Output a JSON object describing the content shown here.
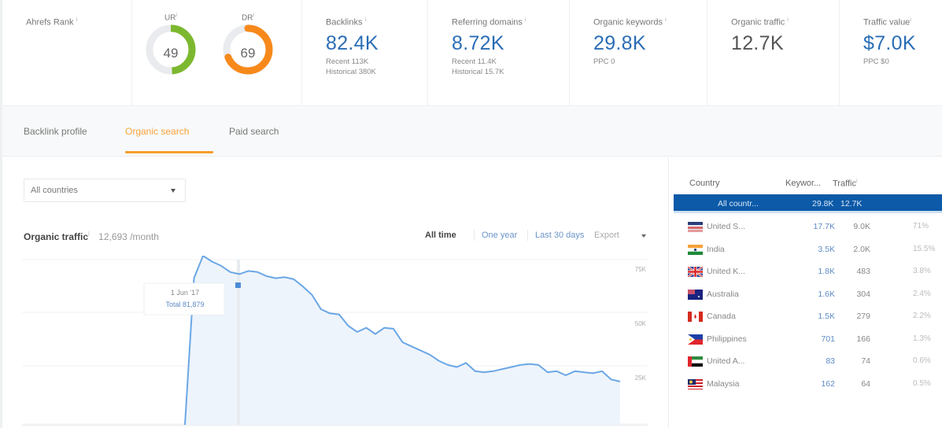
{
  "metrics": {
    "ahrefs_rank": {
      "label": "Ahrefs Rank",
      "info": "i"
    },
    "ur": {
      "label": "UR",
      "info": "i",
      "value": "49",
      "percent": 49,
      "color": "#7cb82f"
    },
    "dr": {
      "label": "DR",
      "info": "i",
      "value": "69",
      "percent": 69,
      "color": "#f7891b"
    },
    "backlinks": {
      "label": "Backlinks",
      "info": "i",
      "value": "82.4K",
      "recent": "Recent 113K",
      "historical": "Historical 380K"
    },
    "referring_domains": {
      "label": "Referring domains",
      "info": "i",
      "value": "8.72K",
      "recent": "Recent 11.4K",
      "historical": "Historical 15.7K"
    },
    "organic_keywords": {
      "label": "Organic keywords",
      "info": "i",
      "value": "29.8K",
      "ppc": "PPC 0"
    },
    "organic_traffic": {
      "label": "Organic traffic",
      "info": "i",
      "value": "12.7K"
    },
    "traffic_value": {
      "label": "Traffic value",
      "info": "i",
      "value": "$7.0K",
      "ppc": "PPC $0"
    }
  },
  "tabs": [
    {
      "label": "Backlink profile",
      "active": false
    },
    {
      "label": "Organic search",
      "active": true
    },
    {
      "label": "Paid search",
      "active": false
    }
  ],
  "filters": {
    "country_select": "All countries"
  },
  "organic_traffic_panel": {
    "title": "Organic traffic",
    "info": "i",
    "value": "12,693 /month",
    "ranges": [
      "All time",
      "One year",
      "Last 30 days"
    ],
    "active_range": "All time",
    "export_label": "Export"
  },
  "chart_data": {
    "type": "area",
    "title": "Organic traffic",
    "xlabel": "",
    "ylabel": "",
    "y_ticks": [
      "75K",
      "50K",
      "25K"
    ],
    "ylim": [
      0,
      80000
    ],
    "grid": true,
    "tooltip": {
      "date": "1 Jun '17",
      "total": "Total 81,879"
    },
    "series": [
      {
        "name": "Total",
        "color": "#5a9be0",
        "fill": "#eef4fb",
        "points": [
          [
            0,
            0
          ],
          [
            1,
            71000
          ],
          [
            2,
            81879
          ],
          [
            3,
            79000
          ],
          [
            4,
            77000
          ],
          [
            5,
            74000
          ],
          [
            6,
            73000
          ],
          [
            7,
            74500
          ],
          [
            8,
            74000
          ],
          [
            9,
            72000
          ],
          [
            10,
            71000
          ],
          [
            11,
            71500
          ],
          [
            12,
            70500
          ],
          [
            13,
            67000
          ],
          [
            14,
            63000
          ],
          [
            15,
            56000
          ],
          [
            16,
            54000
          ],
          [
            17,
            53500
          ],
          [
            18,
            48000
          ],
          [
            19,
            45000
          ],
          [
            20,
            47000
          ],
          [
            21,
            44000
          ],
          [
            22,
            47000
          ],
          [
            23,
            46500
          ],
          [
            24,
            40000
          ],
          [
            25,
            38000
          ],
          [
            26,
            36000
          ],
          [
            27,
            34000
          ],
          [
            28,
            31000
          ],
          [
            29,
            29000
          ],
          [
            30,
            28000
          ],
          [
            31,
            30000
          ],
          [
            32,
            26000
          ],
          [
            33,
            25500
          ],
          [
            34,
            26000
          ],
          [
            35,
            27000
          ],
          [
            36,
            28000
          ],
          [
            37,
            29000
          ],
          [
            38,
            29500
          ],
          [
            39,
            29000
          ],
          [
            40,
            25500
          ],
          [
            41,
            26000
          ],
          [
            42,
            24000
          ],
          [
            43,
            26000
          ],
          [
            44,
            25500
          ],
          [
            45,
            25000
          ],
          [
            46,
            26000
          ],
          [
            47,
            22000
          ],
          [
            48,
            21000
          ]
        ]
      }
    ]
  },
  "country_table": {
    "headers": {
      "country": "Country",
      "keywords": "Keywor...",
      "traffic": "Traffic",
      "traffic_info": "i"
    },
    "all_row": {
      "country": "All countr...",
      "keywords": "29.8K",
      "traffic": "12.7K"
    },
    "rows": [
      {
        "country": "United S...",
        "flag": "us-flag",
        "keywords": "17.7K",
        "traffic": "9.0K",
        "share": "71%"
      },
      {
        "country": "India",
        "flag": "in-flag",
        "keywords": "3.5K",
        "traffic": "2.0K",
        "share": "15.5%"
      },
      {
        "country": "United K...",
        "flag": "uk-flag",
        "keywords": "1.8K",
        "traffic": "483",
        "share": "3.8%"
      },
      {
        "country": "Australia",
        "flag": "au-flag",
        "keywords": "1.6K",
        "traffic": "304",
        "share": "2.4%"
      },
      {
        "country": "Canada",
        "flag": "ca-flag",
        "keywords": "1.5K",
        "traffic": "279",
        "share": "2.2%"
      },
      {
        "country": "Philippines",
        "flag": "ph-flag",
        "keywords": "701",
        "traffic": "166",
        "share": "1.3%"
      },
      {
        "country": "United A...",
        "flag": "ae-flag",
        "keywords": "83",
        "traffic": "74",
        "share": "0.6%"
      },
      {
        "country": "Malaysia",
        "flag": "my-flag",
        "keywords": "162",
        "traffic": "64",
        "share": "0.5%"
      }
    ]
  }
}
